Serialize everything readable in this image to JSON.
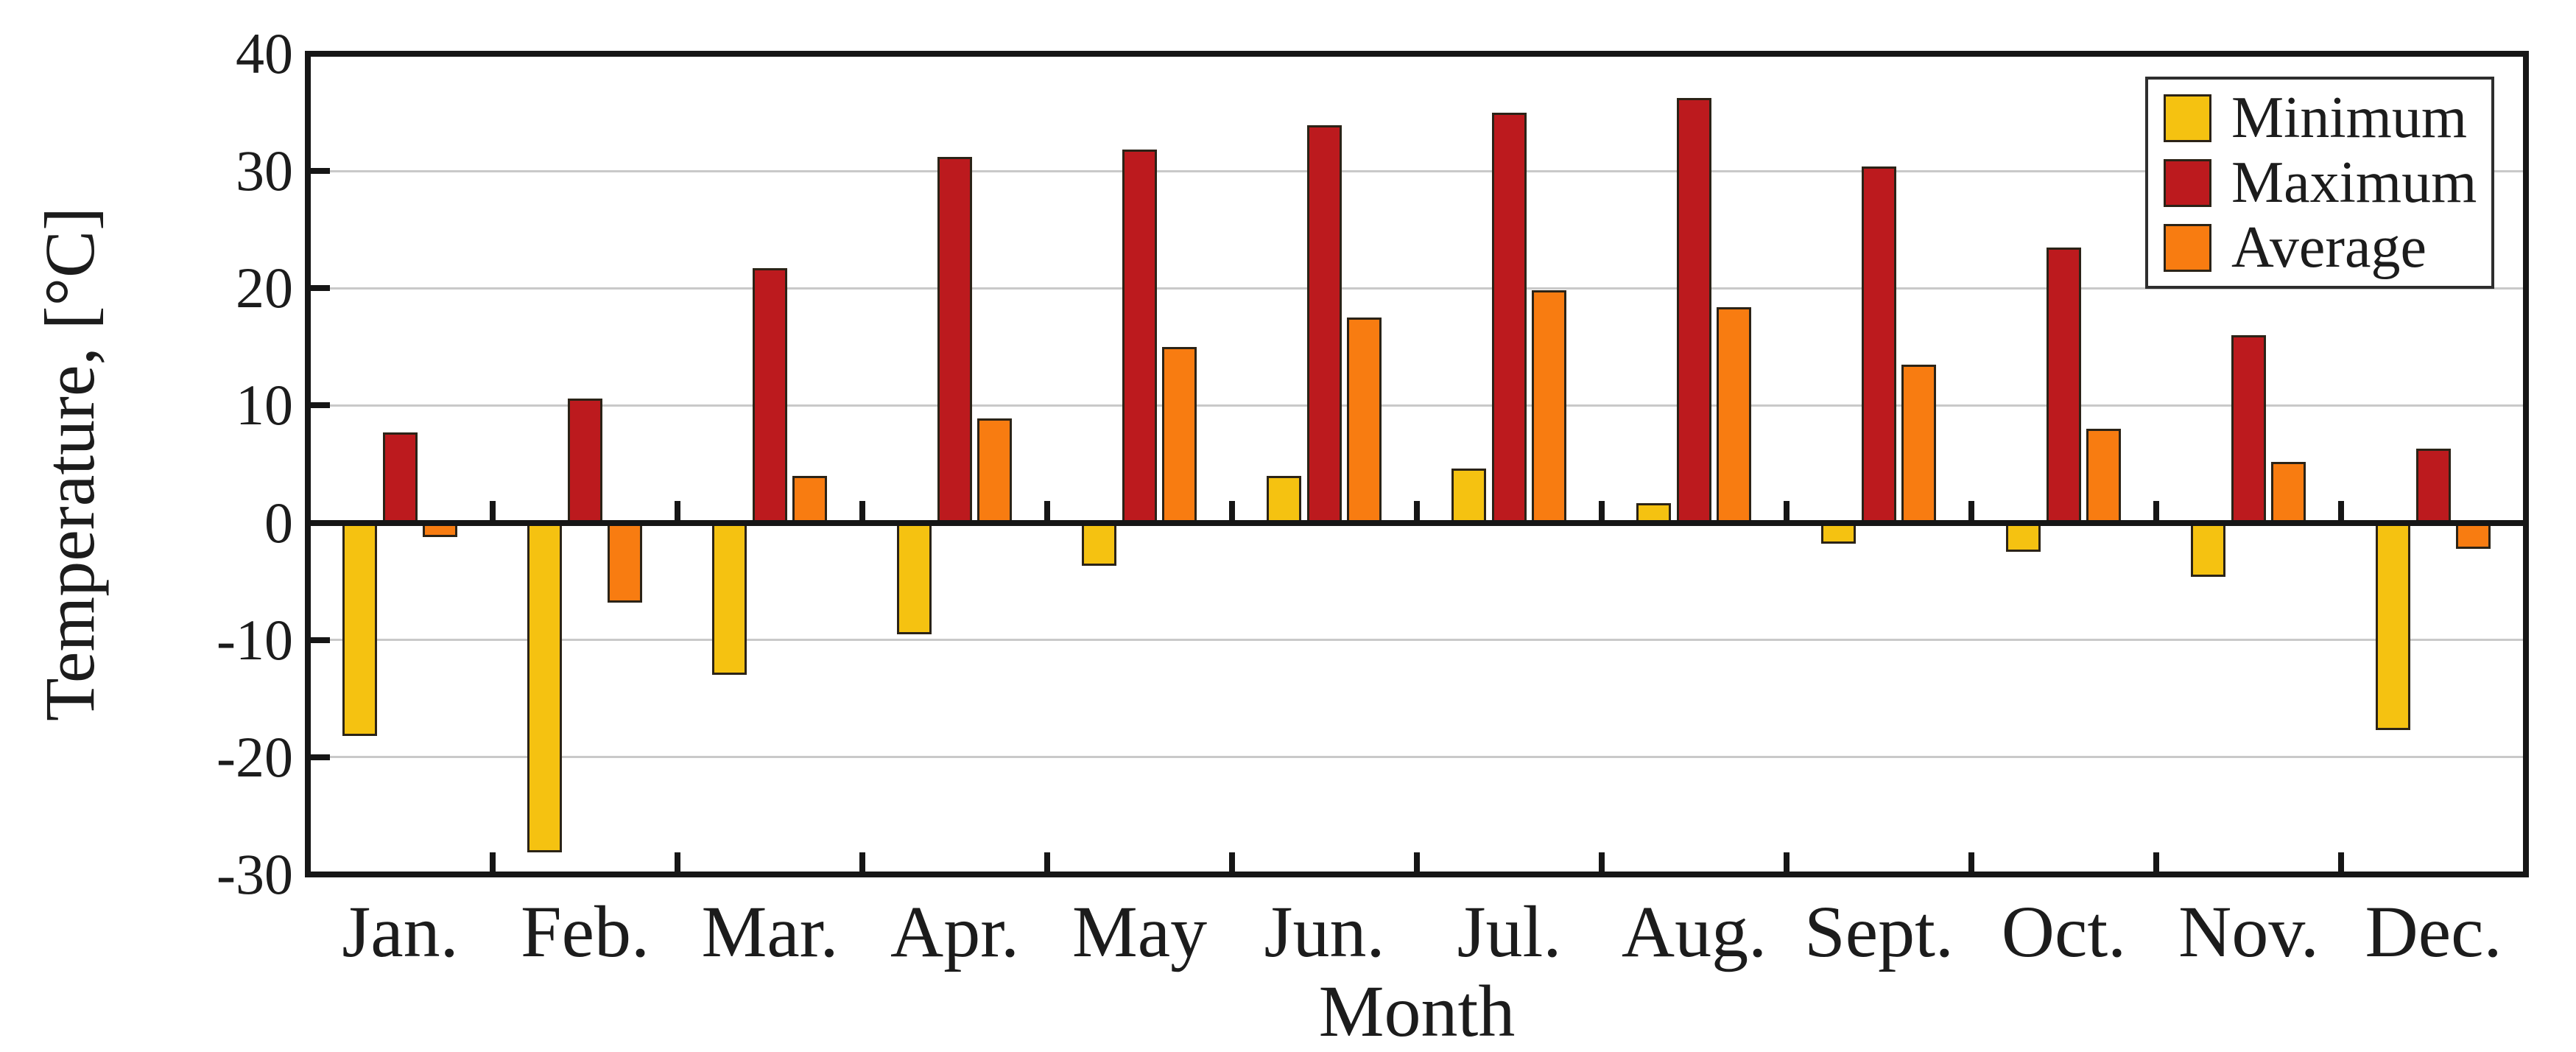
{
  "chart_data": {
    "type": "bar",
    "title": "",
    "xlabel": "Month",
    "ylabel": "Temperature, [°C]",
    "categories": [
      "Jan.",
      "Feb.",
      "Mar.",
      "Apr.",
      "May",
      "Jun.",
      "Jul.",
      "Aug.",
      "Sept.",
      "Oct.",
      "Nov.",
      "Dec."
    ],
    "series": [
      {
        "name": "Minimum",
        "color": "#F5C211",
        "values": [
          -18.2,
          -28.1,
          -13.0,
          -9.5,
          -3.7,
          4.0,
          4.6,
          1.7,
          -1.8,
          -2.5,
          -4.6,
          -17.7
        ]
      },
      {
        "name": "Maximum",
        "color": "#BC1A1E",
        "values": [
          7.7,
          10.6,
          21.7,
          31.2,
          31.8,
          33.9,
          35.0,
          36.2,
          30.4,
          23.5,
          16.0,
          6.3
        ]
      },
      {
        "name": "Average",
        "color": "#F87C11",
        "values": [
          -1.2,
          -6.8,
          4.0,
          8.9,
          15.0,
          17.5,
          19.8,
          18.4,
          13.5,
          8.0,
          5.2,
          -2.2
        ]
      }
    ],
    "ylim": [
      -30,
      40
    ],
    "ytick_interval": 10,
    "ytick_labels": [
      "40",
      "30",
      "20",
      "10",
      "0",
      "-10",
      "-20",
      "-30"
    ],
    "grid": true,
    "grid_color": "#c9c9c9",
    "axis_color": "#161616",
    "legend_position": "top-right"
  }
}
